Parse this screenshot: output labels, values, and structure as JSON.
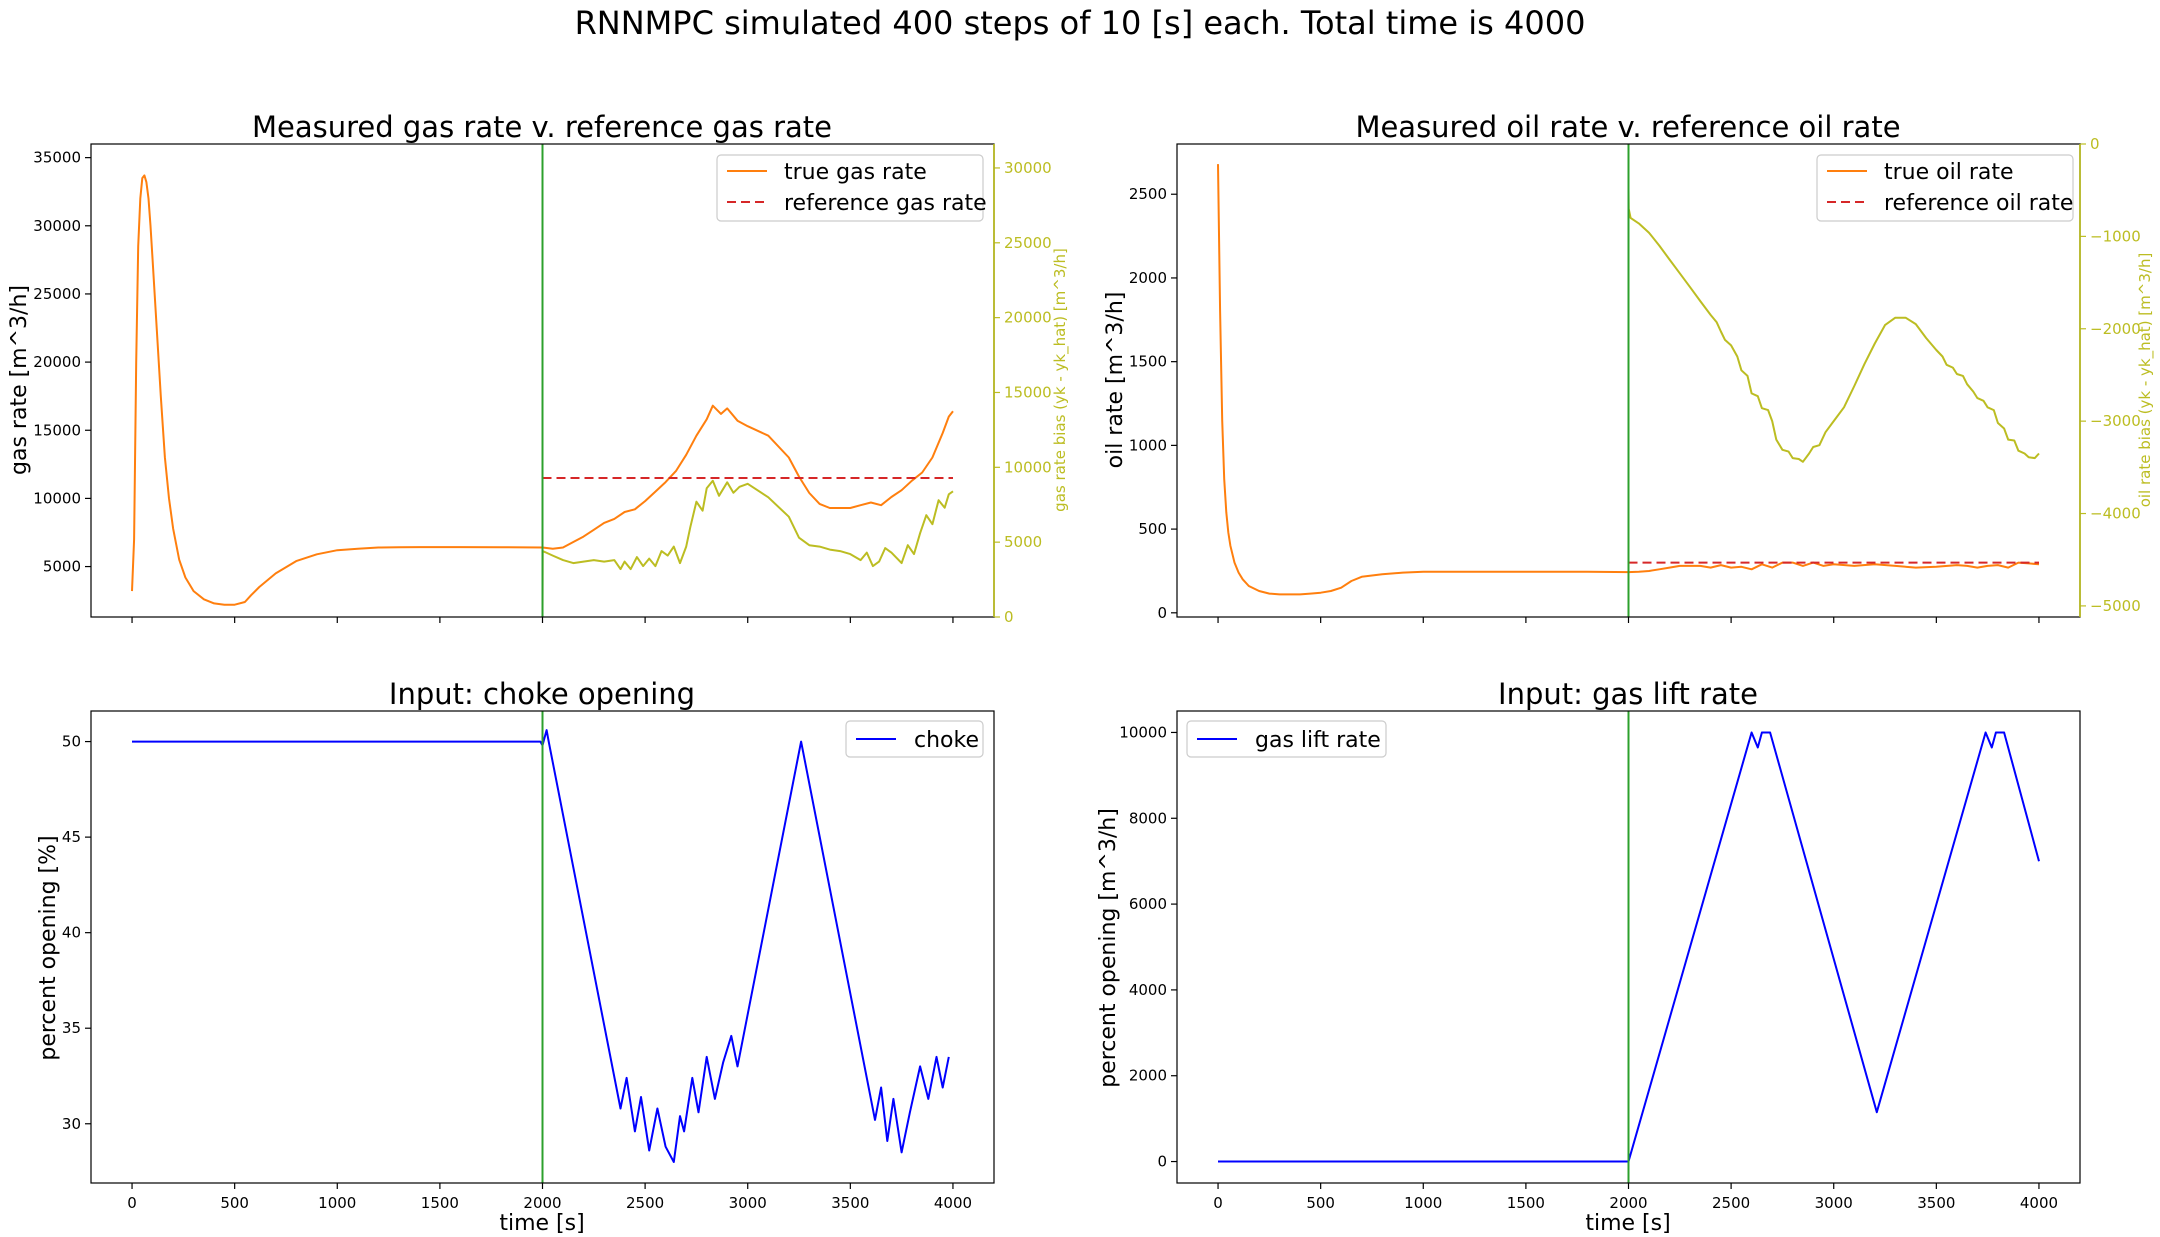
{
  "suptitle": "RNNMPC simulated 400 steps of 10 [s] each. Total time is 4000",
  "colors": {
    "true": "#ff7f0e",
    "reference": "#d62728",
    "bias": "#bcbd22",
    "input": "#0000ff",
    "vline": "#2ca02c",
    "axes": "#000000"
  },
  "chart_data": [
    {
      "type": "line",
      "title": "Measured gas rate v. reference gas rate",
      "ylabel": "gas rate [m^3/h]",
      "y2label": "gas rate bias (yk - yk_hat) [m^3/h]",
      "xlim": [
        -200,
        4200
      ],
      "ylim": [
        1300,
        36000
      ],
      "y2lim": [
        0,
        31600
      ],
      "yticks": [
        5000,
        10000,
        15000,
        20000,
        25000,
        30000,
        35000
      ],
      "y2ticks": [
        0,
        5000,
        10000,
        15000,
        20000,
        25000,
        30000
      ],
      "vline_x": 2000,
      "legend": "top-right",
      "series": [
        {
          "name": "true gas rate",
          "role": "true",
          "axis": "left",
          "x": [
            0,
            10,
            20,
            30,
            40,
            50,
            60,
            70,
            80,
            90,
            100,
            120,
            140,
            160,
            180,
            200,
            230,
            260,
            300,
            350,
            400,
            450,
            500,
            550,
            580,
            620,
            700,
            800,
            900,
            1000,
            1100,
            1200,
            1300,
            1400,
            1600,
            1800,
            2000,
            2050,
            2100,
            2150,
            2200,
            2250,
            2300,
            2350,
            2400,
            2450,
            2500,
            2550,
            2600,
            2650,
            2700,
            2750,
            2800,
            2830,
            2870,
            2900,
            2950,
            3000,
            3100,
            3200,
            3250,
            3300,
            3350,
            3400,
            3500,
            3550,
            3600,
            3650,
            3700,
            3750,
            3800,
            3850,
            3900,
            3950,
            3980,
            4000
          ],
          "values": [
            3200,
            7000,
            20000,
            28500,
            32000,
            33500,
            33700,
            33200,
            32000,
            30000,
            27500,
            22500,
            17500,
            13000,
            10000,
            7800,
            5500,
            4200,
            3200,
            2600,
            2300,
            2200,
            2200,
            2400,
            2900,
            3500,
            4500,
            5400,
            5900,
            6200,
            6300,
            6400,
            6420,
            6430,
            6430,
            6420,
            6400,
            6300,
            6400,
            6800,
            7200,
            7700,
            8200,
            8500,
            9000,
            9200,
            9800,
            10500,
            11200,
            12000,
            13200,
            14600,
            15800,
            16800,
            16200,
            16600,
            15700,
            15300,
            14600,
            13000,
            11600,
            10400,
            9600,
            9300,
            9300,
            9500,
            9700,
            9500,
            10100,
            10600,
            11300,
            11900,
            13000,
            14800,
            16000,
            16400
          ]
        },
        {
          "name": "reference gas rate",
          "role": "reference",
          "axis": "left",
          "dash": true,
          "x": [
            2000,
            4000
          ],
          "values": [
            11500,
            11500
          ]
        },
        {
          "role": "bias",
          "axis": "right",
          "x": [
            2000,
            2001,
            2010,
            2050,
            2100,
            2150,
            2200,
            2250,
            2300,
            2350,
            2380,
            2400,
            2430,
            2460,
            2490,
            2520,
            2550,
            2580,
            2610,
            2640,
            2670,
            2700,
            2720,
            2750,
            2780,
            2800,
            2830,
            2860,
            2900,
            2930,
            2960,
            3000,
            3100,
            3200,
            3250,
            3300,
            3350,
            3400,
            3450,
            3500,
            3550,
            3580,
            3610,
            3640,
            3670,
            3700,
            3750,
            3780,
            3810,
            3840,
            3870,
            3900,
            3930,
            3960,
            3980,
            4000
          ],
          "values": [
            0,
            4400,
            4350,
            4100,
            3800,
            3600,
            3700,
            3800,
            3700,
            3800,
            3200,
            3700,
            3200,
            4000,
            3400,
            3900,
            3400,
            4400,
            4100,
            4700,
            3600,
            4700,
            6000,
            7700,
            7100,
            8600,
            9100,
            8100,
            9000,
            8300,
            8700,
            8900,
            8000,
            6700,
            5300,
            4800,
            4700,
            4500,
            4400,
            4200,
            3800,
            4300,
            3400,
            3700,
            4600,
            4300,
            3600,
            4800,
            4200,
            5600,
            6800,
            6200,
            7800,
            7300,
            8200,
            8400
          ]
        }
      ]
    },
    {
      "type": "line",
      "title": "Measured oil rate v. reference oil rate",
      "ylabel": "oil rate [m^3/h]",
      "y2label": "oil rate bias (yk - yk_hat) [m^3/h]",
      "xlim": [
        -200,
        4200
      ],
      "ylim": [
        -25,
        2800
      ],
      "y2lim": [
        -5120,
        0
      ],
      "yticks": [
        0,
        500,
        1000,
        1500,
        2000,
        2500
      ],
      "y2ticks": [
        0,
        -1000,
        -2000,
        -3000,
        -4000,
        -5000
      ],
      "vline_x": 2000,
      "legend": "top-right",
      "series": [
        {
          "name": "true oil rate",
          "role": "true",
          "axis": "left",
          "x": [
            0,
            10,
            20,
            30,
            40,
            50,
            60,
            80,
            100,
            120,
            150,
            200,
            250,
            300,
            350,
            400,
            450,
            500,
            550,
            600,
            650,
            700,
            800,
            900,
            1000,
            1200,
            1400,
            1600,
            1800,
            2000,
            2050,
            2100,
            2150,
            2200,
            2250,
            2300,
            2350,
            2400,
            2450,
            2500,
            2550,
            2600,
            2650,
            2700,
            2750,
            2800,
            2850,
            2900,
            2950,
            3000,
            3100,
            3200,
            3300,
            3400,
            3500,
            3600,
            3650,
            3700,
            3750,
            3800,
            3850,
            3900,
            3950,
            4000
          ],
          "values": [
            2680,
            1800,
            1150,
            800,
            600,
            480,
            400,
            300,
            240,
            200,
            160,
            130,
            115,
            110,
            110,
            110,
            115,
            120,
            130,
            150,
            190,
            215,
            230,
            240,
            245,
            245,
            245,
            245,
            245,
            243,
            245,
            250,
            260,
            270,
            280,
            280,
            280,
            270,
            285,
            270,
            275,
            260,
            290,
            270,
            300,
            300,
            280,
            300,
            280,
            290,
            280,
            290,
            280,
            270,
            275,
            285,
            280,
            270,
            280,
            285,
            270,
            300,
            295,
            290
          ]
        },
        {
          "name": "reference oil rate",
          "role": "reference",
          "axis": "left",
          "dash": true,
          "x": [
            2000,
            4000
          ],
          "values": [
            300,
            300
          ]
        },
        {
          "role": "bias",
          "axis": "right",
          "x": [
            2000,
            2001,
            2010,
            2050,
            2100,
            2150,
            2200,
            2250,
            2300,
            2350,
            2400,
            2430,
            2450,
            2470,
            2500,
            2530,
            2550,
            2580,
            2600,
            2630,
            2650,
            2680,
            2700,
            2720,
            2750,
            2780,
            2800,
            2830,
            2850,
            2880,
            2900,
            2930,
            2960,
            3000,
            3050,
            3100,
            3150,
            3200,
            3250,
            3300,
            3350,
            3400,
            3450,
            3500,
            3530,
            3550,
            3580,
            3600,
            3630,
            3650,
            3680,
            3700,
            3730,
            3750,
            3780,
            3800,
            3830,
            3850,
            3880,
            3900,
            3930,
            3950,
            3980,
            4000
          ],
          "values": [
            -500,
            -700,
            -800,
            -860,
            -960,
            -1100,
            -1250,
            -1400,
            -1550,
            -1700,
            -1850,
            -1930,
            -2030,
            -2120,
            -2180,
            -2300,
            -2450,
            -2510,
            -2700,
            -2730,
            -2860,
            -2880,
            -3000,
            -3200,
            -3310,
            -3330,
            -3400,
            -3410,
            -3440,
            -3350,
            -3280,
            -3260,
            -3120,
            -3000,
            -2850,
            -2620,
            -2380,
            -2160,
            -1960,
            -1880,
            -1880,
            -1950,
            -2100,
            -2230,
            -2300,
            -2390,
            -2420,
            -2490,
            -2510,
            -2600,
            -2680,
            -2750,
            -2780,
            -2850,
            -2880,
            -3020,
            -3080,
            -3200,
            -3210,
            -3320,
            -3350,
            -3390,
            -3400,
            -3350
          ]
        }
      ]
    },
    {
      "type": "line",
      "title": "Input: choke opening",
      "ylabel": "percent opening [%]",
      "xlabel": "time [s]",
      "xlim": [
        -200,
        4200
      ],
      "ylim": [
        26.9,
        51.6
      ],
      "yticks": [
        30,
        35,
        40,
        45,
        50
      ],
      "xticks": [
        0,
        500,
        1000,
        1500,
        2000,
        2500,
        3000,
        3500,
        4000
      ],
      "vline_x": 2000,
      "legend": "top-right",
      "series": [
        {
          "name": "choke",
          "role": "input",
          "x": [
            0,
            1990,
            2000,
            2020,
            2030,
            2380,
            2410,
            2450,
            2480,
            2520,
            2560,
            2600,
            2640,
            2670,
            2690,
            2730,
            2760,
            2800,
            2840,
            2880,
            2920,
            2950,
            3260,
            3620,
            3650,
            3680,
            3710,
            3750,
            3790,
            3840,
            3880,
            3920,
            3950,
            3980
          ],
          "values": [
            50,
            50,
            49.8,
            50.6,
            50.0,
            30.8,
            32.4,
            29.6,
            31.4,
            28.6,
            30.8,
            28.8,
            28.0,
            30.4,
            29.6,
            32.4,
            30.6,
            33.5,
            31.3,
            33.2,
            34.6,
            33.0,
            50.0,
            30.2,
            31.9,
            29.1,
            31.3,
            28.5,
            30.6,
            33.0,
            31.3,
            33.5,
            31.9,
            33.5
          ]
        }
      ]
    },
    {
      "type": "line",
      "title": "Input: gas lift rate",
      "ylabel": "percent opening [m^3/h]",
      "xlabel": "time [s]",
      "xlim": [
        -200,
        4200
      ],
      "ylim": [
        -500,
        10500
      ],
      "yticks": [
        0,
        2000,
        4000,
        6000,
        8000,
        10000
      ],
      "xticks": [
        0,
        500,
        1000,
        1500,
        2000,
        2500,
        3000,
        3500,
        4000
      ],
      "vline_x": 2000,
      "legend": "top-left",
      "series": [
        {
          "name": "gas lift rate",
          "role": "input",
          "x": [
            0,
            2000,
            2600,
            2630,
            2650,
            2690,
            3210,
            3740,
            3770,
            3790,
            3830,
            4000
          ],
          "values": [
            0,
            0,
            10000,
            9650,
            10000,
            10000,
            1150,
            10000,
            9650,
            10000,
            10000,
            7000
          ]
        }
      ]
    }
  ]
}
